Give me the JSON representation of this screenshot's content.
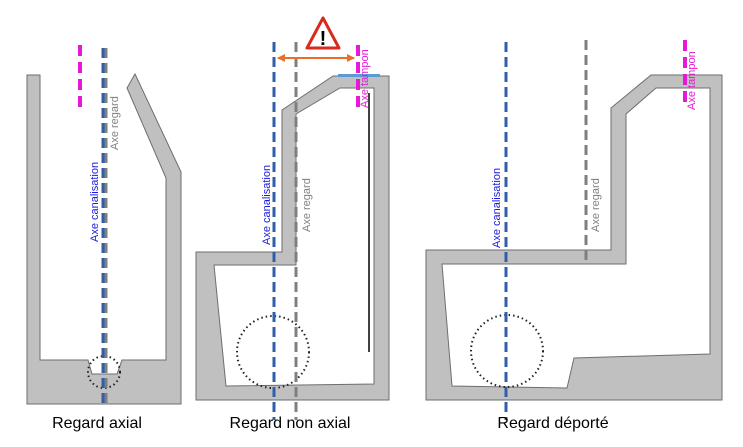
{
  "colors": {
    "structure_fill": "#c0c0c0",
    "structure_stroke": "#6e6e6e",
    "axe_canalisation": "#2f5fa8",
    "axe_regard": "#7f7f7f",
    "axe_tampon": "#e619d6",
    "label_canalisation": "#1a1adb",
    "label_regard": "#808080",
    "label_tampon": "#e619d6",
    "offset_arrow": "#e8702a",
    "warning_border": "#d62b1e",
    "cover_plate": "#5b9bd5"
  },
  "icons": {
    "warning": "warning-triangle-icon",
    "offset": "double-arrow-icon",
    "pipe": "pipe-section-circle"
  },
  "labels": {
    "axe_canalisation": "Axe canalisation",
    "axe_regard": "Axe regard",
    "axe_tampon": "Axe tampon",
    "warning_mark": "!"
  },
  "panels": [
    {
      "id": "axial",
      "caption": "Regard axial"
    },
    {
      "id": "non-axial",
      "caption": "Regard non axial"
    },
    {
      "id": "deporte",
      "caption": "Regard déporté"
    }
  ]
}
